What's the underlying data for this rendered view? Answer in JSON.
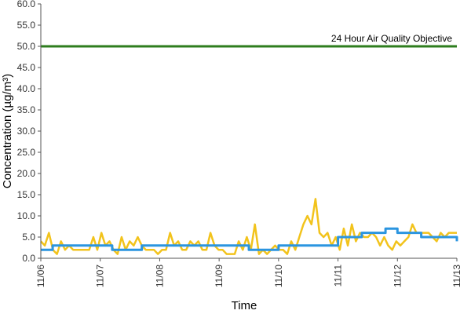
{
  "chart_data": {
    "type": "line",
    "title": "",
    "xlabel": "Time",
    "ylabel": "Concentration (µg/m³)",
    "ylim": [
      0,
      60
    ],
    "yticks": [
      "0.0",
      "5.0",
      "10.0",
      "15.0",
      "20.0",
      "25.0",
      "30.0",
      "35.0",
      "40.0",
      "45.0",
      "50.0",
      "55.0",
      "60.0"
    ],
    "xlim": [
      "11/06",
      "11/13"
    ],
    "xticks": [
      "11/06",
      "11/07",
      "11/08",
      "11/09",
      "11/10",
      "11/11",
      "11/12",
      "11/13"
    ],
    "grid": false,
    "legend": "none",
    "objective": {
      "value": 50,
      "label": "24 Hour Air Quality Objective",
      "color": "#2e7d1e"
    },
    "series": [
      {
        "color": "#f2c31c",
        "x_days": [
          0,
          0.07,
          0.14,
          0.21,
          0.28,
          0.35,
          0.42,
          0.49,
          0.56,
          0.63,
          0.7,
          0.77,
          0.84,
          0.91,
          0.98,
          1.0,
          1.05,
          1.12,
          1.19,
          1.26,
          1.33,
          1.4,
          1.47,
          1.54,
          1.61,
          1.68,
          1.75,
          1.82,
          1.89,
          1.96,
          2.0,
          2.03,
          2.1,
          2.17,
          2.24,
          2.31,
          2.38,
          2.45,
          2.52,
          2.59,
          2.66,
          2.73,
          2.8,
          2.87,
          2.94,
          3.0,
          3.01,
          3.08,
          3.15,
          3.22,
          3.29,
          3.36,
          3.43,
          3.5,
          3.57,
          3.64,
          3.71,
          3.78,
          3.85,
          3.92,
          3.99,
          4.06,
          4.13,
          4.2,
          4.27,
          4.34,
          4.41,
          4.48,
          4.55,
          4.62,
          4.69,
          4.76,
          4.83,
          4.9,
          4.97,
          5.04,
          5.11,
          5.18,
          5.25,
          5.32,
          5.39,
          5.46,
          5.53,
          5.6,
          5.67,
          5.74,
          5.81,
          5.88,
          5.95,
          6.02,
          6.09,
          6.16,
          6.23,
          6.3,
          6.37,
          6.44,
          6.51,
          6.58,
          6.65,
          6.72,
          6.79,
          6.86,
          6.93,
          7.0
        ],
        "values": [
          4,
          3,
          6,
          2,
          1,
          4,
          2,
          3,
          2,
          2,
          2,
          2,
          2,
          5,
          2,
          6,
          3,
          4,
          2,
          1,
          5,
          2,
          4,
          3,
          5,
          3,
          2,
          2,
          2,
          1,
          2,
          2,
          6,
          3,
          4,
          2,
          2,
          4,
          3,
          4,
          2,
          2,
          6,
          3,
          2,
          2,
          1,
          1,
          1,
          4,
          2,
          5,
          2,
          8,
          1,
          2,
          1,
          2,
          3,
          2,
          2,
          1,
          4,
          2,
          5,
          8,
          10,
          8,
          14,
          6,
          5,
          6,
          3,
          5,
          2,
          7,
          3,
          8,
          4,
          6,
          5,
          5,
          6,
          5,
          3,
          5,
          3,
          2,
          4,
          3,
          4,
          5,
          8,
          6,
          6,
          6,
          6,
          5,
          4,
          6,
          5,
          6,
          6,
          6
        ],
        "values_note_removed": true
      },
      {
        "color": "#2b95e0",
        "step_x_days": [
          0,
          0.2,
          0.6,
          0.9,
          1.1,
          1.2,
          1.5,
          1.7,
          2.0,
          2.7,
          3.0,
          3.2,
          3.5,
          3.7,
          4.0,
          4.4,
          4.6,
          4.9,
          5.0,
          5.4,
          5.8,
          6.0,
          6.4,
          6.6,
          7.0
        ],
        "values": [
          2,
          3,
          3,
          3,
          3,
          2,
          2,
          3,
          3,
          3,
          3,
          3,
          2,
          2,
          3,
          3,
          3,
          3,
          5,
          6,
          7,
          6,
          5,
          5,
          4
        ]
      }
    ]
  }
}
